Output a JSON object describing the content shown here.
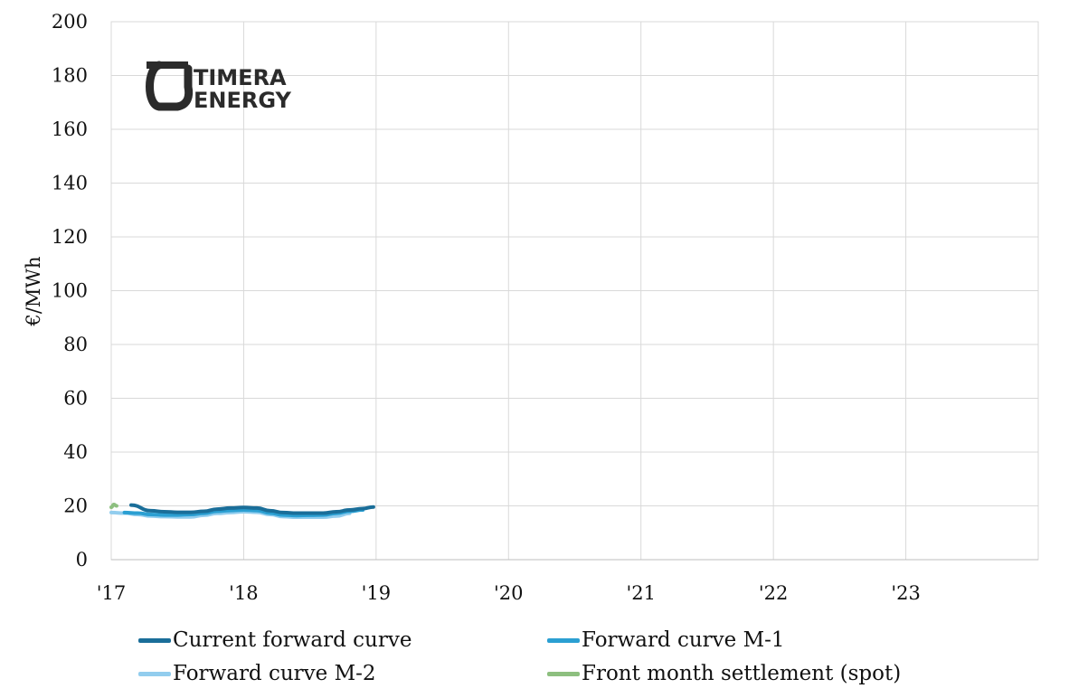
{
  "chart_data": {
    "type": "line",
    "title": "",
    "xlabel": "",
    "ylabel": "€/MWh",
    "ylim": [
      0,
      200
    ],
    "yticks": [
      0,
      20,
      40,
      60,
      80,
      100,
      120,
      140,
      160,
      180,
      200
    ],
    "xlim": [
      2017,
      2024
    ],
    "xticks": [
      {
        "value": 2017,
        "label": "'17"
      },
      {
        "value": 2018,
        "label": "'18"
      },
      {
        "value": 2019,
        "label": "'19"
      },
      {
        "value": 2020,
        "label": "'20"
      },
      {
        "value": 2021,
        "label": "'21"
      },
      {
        "value": 2022,
        "label": "'22"
      },
      {
        "value": 2023,
        "label": "'23"
      }
    ],
    "grid": true,
    "legend_position": "bottom",
    "series": [
      {
        "name": "Forward curve M-2",
        "color": "#92cdee",
        "x": [
          2017.0,
          2017.1,
          2017.2,
          2017.3,
          2017.4,
          2017.5,
          2017.6,
          2017.7,
          2017.8,
          2017.9,
          2018.0,
          2018.1,
          2018.2,
          2018.3,
          2018.4,
          2018.5,
          2018.6,
          2018.7,
          2018.8
        ],
        "y": [
          17.5,
          17.3,
          16.8,
          16.2,
          16.0,
          15.9,
          15.9,
          16.5,
          17.2,
          17.5,
          17.8,
          17.6,
          16.8,
          16.0,
          15.8,
          15.8,
          15.8,
          16.2,
          17.2
        ]
      },
      {
        "name": "Forward curve M-1",
        "color": "#2b9fd2",
        "x": [
          2017.1,
          2017.2,
          2017.3,
          2017.4,
          2017.5,
          2017.6,
          2017.7,
          2017.8,
          2017.9,
          2018.0,
          2018.1,
          2018.2,
          2018.3,
          2018.4,
          2018.5,
          2018.6,
          2018.7,
          2018.8,
          2018.9
        ],
        "y": [
          17.5,
          17.3,
          16.8,
          16.6,
          16.6,
          16.8,
          17.2,
          18.0,
          18.3,
          18.5,
          18.3,
          17.3,
          16.6,
          16.4,
          16.5,
          16.6,
          17.2,
          18.0,
          18.5
        ]
      },
      {
        "name": "Current forward curve",
        "color": "#1a6e99",
        "x": [
          2017.15,
          2017.3,
          2017.4,
          2017.5,
          2017.6,
          2017.7,
          2017.8,
          2017.9,
          2018.0,
          2018.1,
          2018.2,
          2018.3,
          2018.4,
          2018.5,
          2018.6,
          2018.7,
          2018.8,
          2018.9,
          2018.98
        ],
        "y": [
          20.3,
          18.2,
          17.8,
          17.6,
          17.6,
          18.0,
          18.8,
          19.2,
          19.4,
          19.2,
          18.2,
          17.5,
          17.3,
          17.3,
          17.3,
          17.8,
          18.5,
          19.0,
          19.6
        ]
      },
      {
        "name": "Front month settlement (spot)",
        "color": "#8dbf7f",
        "x": [
          2017.0,
          2017.02,
          2017.04
        ],
        "y": [
          19.5,
          20.5,
          20.0
        ]
      }
    ]
  },
  "legend": [
    {
      "name": "Current forward curve",
      "color": "#1a6e99"
    },
    {
      "name": "Forward curve M-1",
      "color": "#2b9fd2"
    },
    {
      "name": "Forward curve M-2",
      "color": "#92cdee"
    },
    {
      "name": "Front month settlement (spot)",
      "color": "#8dbf7f"
    }
  ],
  "logo": {
    "line1": "TIMERA",
    "line2": "ENERGY",
    "icon": "timera-logo-icon"
  }
}
